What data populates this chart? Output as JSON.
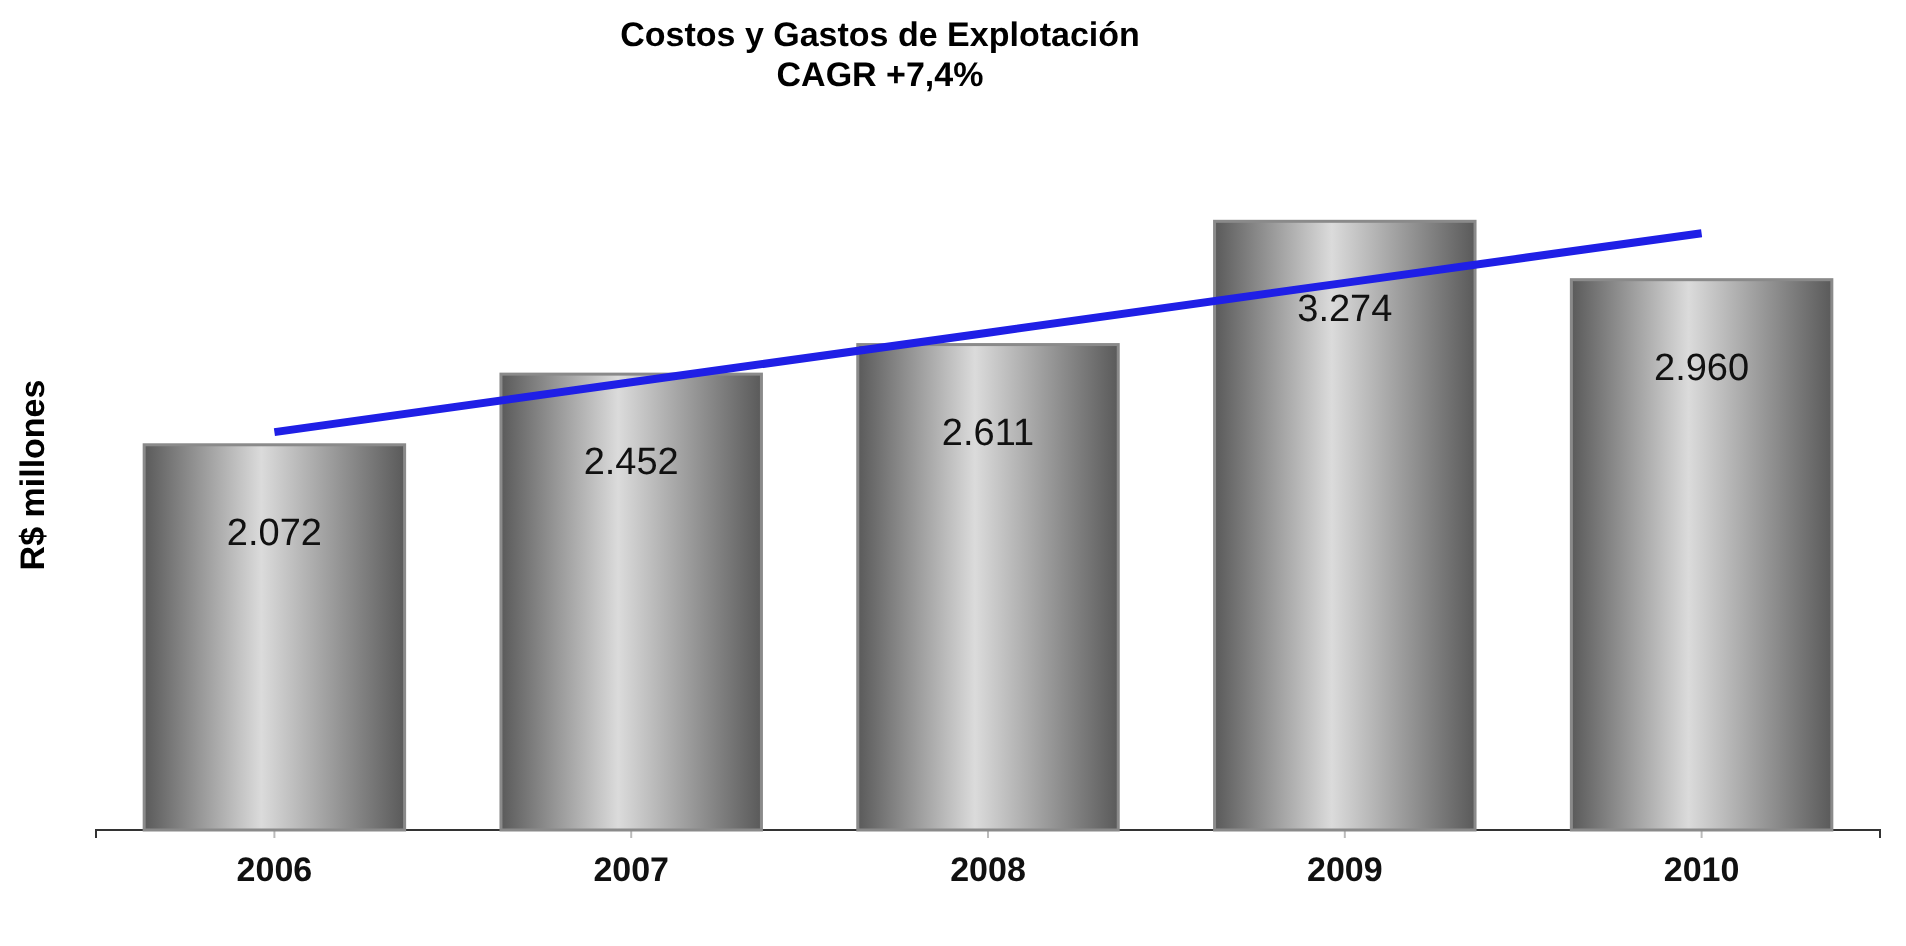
{
  "chart_data": {
    "type": "bar",
    "title": "Costos y Gastos de Explotación",
    "subtitle": "CAGR +7,4%",
    "ylabel": "R$ millones",
    "categories": [
      "2006",
      "2007",
      "2008",
      "2009",
      "2010"
    ],
    "tick_labels": "x",
    "series": [
      {
        "color": "#8a8a8a",
        "values": [
          2072,
          2452,
          2611,
          3274,
          2960
        ],
        "value_labels": [
          "2.072",
          "2.452",
          "2.611",
          "3.274",
          "2.960"
        ]
      },
      {
        "type": "line",
        "color": "#1f1fe6",
        "values": [
          2140,
          2408,
          2675,
          2943,
          3210
        ],
        "line_style": "solid",
        "marker": "none"
      }
    ]
  }
}
